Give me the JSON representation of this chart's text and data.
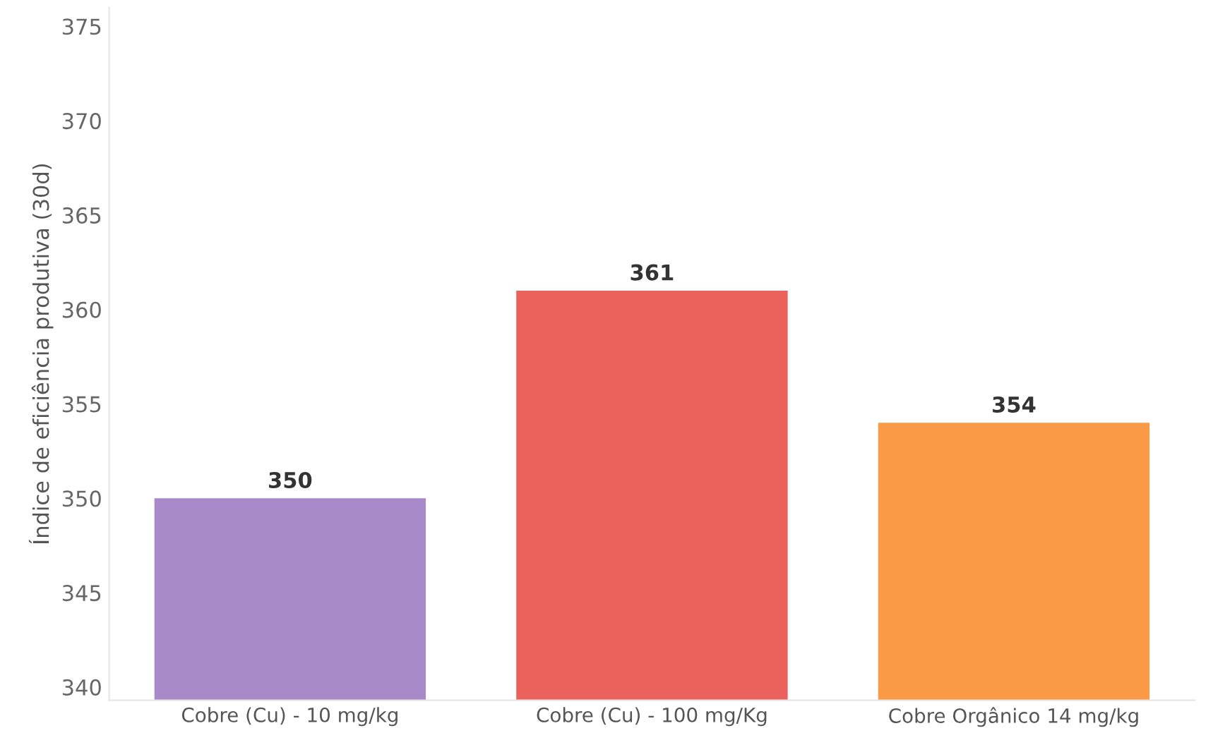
{
  "chart_data": {
    "type": "bar",
    "ylabel": "Índice de eficiência produtiva (30d)",
    "categories": [
      "Cobre (Cu) - 10 mg/kg",
      "Cobre (Cu) - 100 mg/Kg",
      "Cobre Orgânico 14 mg/kg"
    ],
    "values": [
      350,
      361,
      354
    ],
    "colors": [
      "#a98ac8",
      "#ea625b",
      "#fb9a46"
    ],
    "ylim": [
      339.3,
      376
    ],
    "yticks": [
      340,
      345,
      350,
      355,
      360,
      365,
      370,
      375
    ],
    "data_labels": true,
    "grid": false,
    "legend": false
  }
}
